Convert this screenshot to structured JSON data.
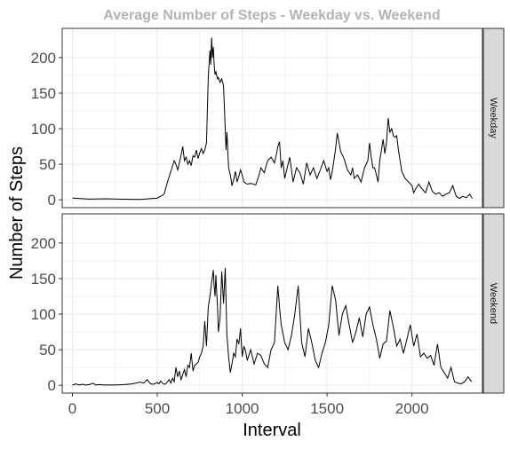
{
  "chart_data": {
    "type": "line",
    "title": "Average Number of Steps - Weekday vs. Weekend",
    "xlabel": "Interval",
    "ylabel": "Number of Steps",
    "xlim": [
      -60,
      2415
    ],
    "ylim": [
      -11,
      241
    ],
    "x_ticks": [
      0,
      500,
      1000,
      1500,
      2000
    ],
    "y_ticks": [
      0,
      50,
      100,
      150,
      200
    ],
    "grid": true,
    "colors": {
      "line": "#000000",
      "title": "#b3b3b3",
      "strip": "#d9d9d9",
      "grid": "#ebebeb",
      "axis_text": "#4d4d4d"
    },
    "series": [
      {
        "name": "Weekday",
        "x": [
          0,
          100,
          200,
          300,
          400,
          500,
          520,
          540,
          560,
          580,
          600,
          610,
          620,
          630,
          640,
          650,
          660,
          670,
          680,
          690,
          700,
          710,
          720,
          730,
          740,
          750,
          760,
          770,
          780,
          790,
          800,
          810,
          815,
          820,
          825,
          830,
          835,
          840,
          845,
          850,
          855,
          860,
          870,
          880,
          890,
          900,
          905,
          910,
          920,
          930,
          940,
          950,
          960,
          970,
          980,
          990,
          1000,
          1010,
          1030,
          1050,
          1080,
          1100,
          1110,
          1130,
          1150,
          1170,
          1190,
          1200,
          1210,
          1220,
          1230,
          1240,
          1250,
          1260,
          1280,
          1300,
          1320,
          1340,
          1360,
          1380,
          1400,
          1420,
          1440,
          1460,
          1480,
          1500,
          1510,
          1520,
          1530,
          1540,
          1550,
          1560,
          1580,
          1600,
          1620,
          1640,
          1650,
          1660,
          1680,
          1700,
          1720,
          1740,
          1750,
          1760,
          1770,
          1780,
          1790,
          1800,
          1810,
          1820,
          1830,
          1840,
          1850,
          1860,
          1870,
          1880,
          1890,
          1900,
          1910,
          1920,
          1930,
          1940,
          1950,
          1960,
          1980,
          2000,
          2010,
          2020,
          2040,
          2060,
          2080,
          2100,
          2120,
          2140,
          2160,
          2180,
          2200,
          2220,
          2240,
          2260,
          2280,
          2300,
          2320,
          2340,
          2355
        ],
        "y": [
          2.3,
          1.0,
          1.5,
          0.8,
          0.5,
          2.5,
          5,
          8,
          25,
          40,
          55,
          50,
          42,
          52,
          63,
          75,
          55,
          60,
          50,
          55,
          48,
          62,
          60,
          70,
          58,
          66,
          72,
          65,
          70,
          80,
          172,
          210,
          190,
          228,
          200,
          215,
          190,
          176,
          180,
          175,
          170,
          172,
          165,
          170,
          160,
          100,
          70,
          95,
          45,
          35,
          20,
          28,
          40,
          25,
          33,
          42,
          35,
          25,
          22,
          23,
          21,
          35,
          45,
          38,
          55,
          60,
          52,
          62,
          75,
          82,
          45,
          55,
          30,
          40,
          60,
          25,
          45,
          38,
          22,
          52,
          35,
          45,
          30,
          42,
          55,
          40,
          45,
          28,
          40,
          55,
          72,
          94,
          68,
          58,
          42,
          35,
          45,
          30,
          35,
          25,
          45,
          55,
          80,
          60,
          45,
          45,
          35,
          25,
          55,
          70,
          85,
          65,
          80,
          115,
          95,
          100,
          90,
          88,
          90,
          70,
          55,
          40,
          35,
          30,
          25,
          20,
          10,
          15,
          22,
          15,
          10,
          25,
          12,
          8,
          10,
          5,
          8,
          10,
          20,
          5,
          2,
          5,
          3,
          8,
          2
        ]
      },
      {
        "name": "Weekend",
        "x": [
          0,
          20,
          40,
          60,
          80,
          100,
          120,
          140,
          160,
          180,
          200,
          250,
          300,
          350,
          400,
          420,
          440,
          460,
          480,
          500,
          510,
          520,
          530,
          540,
          550,
          560,
          570,
          580,
          590,
          600,
          610,
          620,
          630,
          640,
          650,
          660,
          670,
          680,
          690,
          700,
          710,
          720,
          730,
          740,
          750,
          760,
          770,
          780,
          790,
          800,
          810,
          820,
          830,
          835,
          840,
          845,
          850,
          855,
          860,
          870,
          880,
          890,
          900,
          910,
          920,
          930,
          940,
          950,
          960,
          970,
          980,
          990,
          1000,
          1010,
          1020,
          1030,
          1050,
          1070,
          1090,
          1110,
          1130,
          1150,
          1170,
          1190,
          1210,
          1220,
          1230,
          1250,
          1270,
          1290,
          1310,
          1330,
          1350,
          1370,
          1390,
          1410,
          1430,
          1450,
          1470,
          1490,
          1510,
          1530,
          1550,
          1570,
          1590,
          1610,
          1630,
          1650,
          1670,
          1690,
          1710,
          1730,
          1750,
          1770,
          1790,
          1810,
          1830,
          1850,
          1870,
          1890,
          1910,
          1930,
          1950,
          1970,
          1990,
          2010,
          2030,
          2050,
          2070,
          2090,
          2110,
          2130,
          2150,
          2170,
          2190,
          2210,
          2230,
          2250,
          2270,
          2290,
          2310,
          2330,
          2350
        ],
        "y": [
          0.2,
          2,
          0.5,
          1.5,
          0.3,
          1,
          2.8,
          0.5,
          1,
          0.3,
          0.5,
          0.4,
          0.8,
          2,
          4.5,
          3,
          8,
          2,
          1.5,
          4,
          2,
          6,
          3,
          1.5,
          2,
          5,
          8,
          3,
          10,
          5,
          25,
          12,
          20,
          8,
          15,
          22,
          12,
          28,
          25,
          45,
          20,
          28,
          30,
          32,
          40,
          45,
          55,
          90,
          55,
          110,
          125,
          145,
          162,
          140,
          125,
          155,
          130,
          108,
          75,
          95,
          160,
          115,
          165,
          70,
          40,
          18,
          30,
          45,
          40,
          65,
          58,
          80,
          40,
          55,
          48,
          35,
          50,
          30,
          45,
          42,
          30,
          25,
          50,
          60,
          140,
          110,
          85,
          60,
          50,
          70,
          100,
          140,
          60,
          40,
          80,
          60,
          35,
          25,
          45,
          60,
          85,
          140,
          120,
          70,
          100,
          112,
          85,
          60,
          75,
          95,
          68,
          100,
          110,
          85,
          65,
          38,
          58,
          62,
          105,
          82,
          55,
          65,
          45,
          65,
          85,
          55,
          72,
          40,
          45,
          38,
          42,
          28,
          58,
          25,
          18,
          10,
          25,
          5,
          3,
          2,
          5,
          12,
          5
        ],
        "y_extra": []
      }
    ]
  }
}
